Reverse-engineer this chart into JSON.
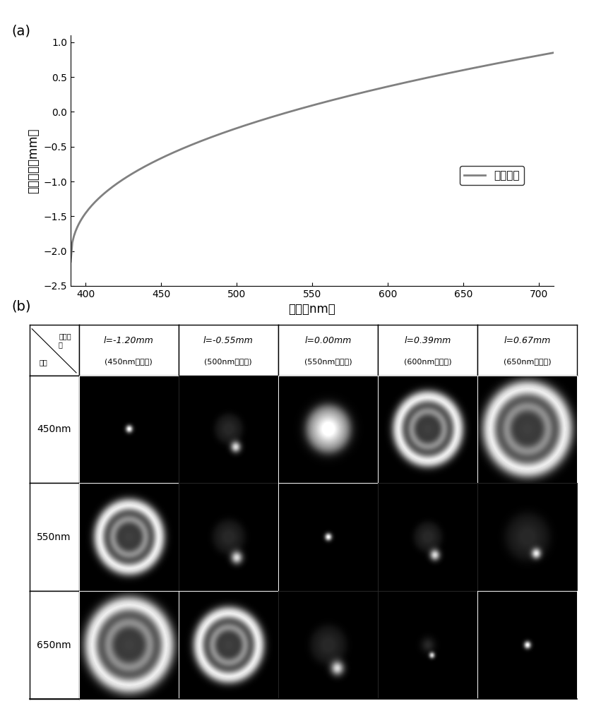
{
  "plot_a": {
    "x_start": 390,
    "x_end": 710,
    "y_at_390": -2.15,
    "y_at_710": 0.85,
    "xlabel": "波长（nm）",
    "ylabel": "相对像距（mm）",
    "xlim": [
      390,
      710
    ],
    "ylim": [
      -2.5,
      1.1
    ],
    "xticks": [
      400,
      450,
      500,
      550,
      600,
      650,
      700
    ],
    "yticks": [
      -2.5,
      -2.0,
      -1.5,
      -1.0,
      -0.5,
      0.0,
      0.5,
      1.0
    ],
    "legend_label": "色差曲线",
    "line_color": "#808080",
    "label_a": "(a)",
    "curve_power": 0.42
  },
  "plot_b": {
    "label_b": "(b)",
    "col_headers_line1": [
      "l=-1.20mm",
      "l=-0.55mm",
      "l=0.00mm",
      "l=0.39mm",
      "l=0.67mm"
    ],
    "col_headers_line2": [
      "(450nm聚焦处)",
      "(500nm聚焦处)",
      "(550nm聚焦处)",
      "(600nm聚焦处)",
      "(650nm聚焦处)"
    ],
    "row_headers": [
      "450nm",
      "550nm",
      "650nm"
    ],
    "header_top_left_line1": "相机位",
    "header_top_left_line2": "置",
    "header_top_left_line3": "波长",
    "bg_color": "black",
    "grid_color": "white"
  },
  "psf_data": {
    "focus_cols": [
      0,
      2,
      4
    ],
    "psf_sizes": [
      [
        0.04,
        0.14,
        0.22,
        0.3,
        0.38
      ],
      [
        0.3,
        0.16,
        0.04,
        0.14,
        0.22
      ],
      [
        0.38,
        0.3,
        0.18,
        0.08,
        0.04
      ]
    ],
    "has_satellite": [
      [
        false,
        true,
        false,
        false,
        false
      ],
      [
        false,
        true,
        false,
        true,
        true
      ],
      [
        false,
        false,
        true,
        true,
        false
      ]
    ],
    "has_ring": [
      [
        false,
        false,
        false,
        true,
        true
      ],
      [
        true,
        false,
        false,
        false,
        false
      ],
      [
        true,
        true,
        false,
        false,
        false
      ]
    ]
  }
}
